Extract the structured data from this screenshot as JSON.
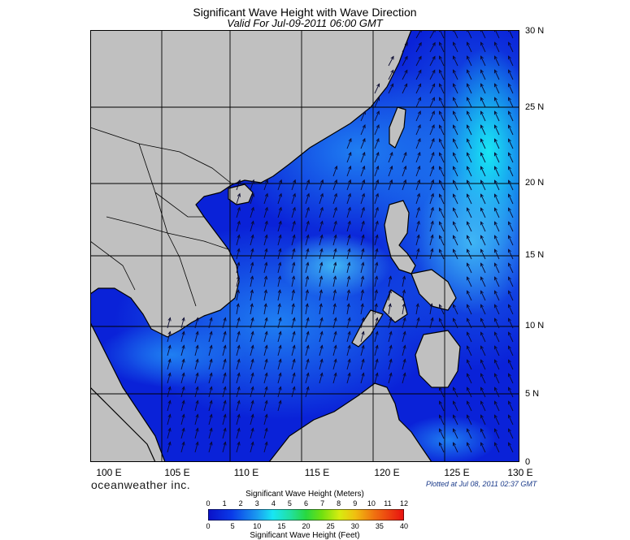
{
  "title": "Significant Wave Height with Wave Direction",
  "subtitle": "Valid For Jul-09-2011 06:00 GMT",
  "lat_labels": [
    "30 N",
    "25 N",
    "20 N",
    "15 N",
    "10 N",
    "5 N",
    "0"
  ],
  "lon_labels": [
    "100 E",
    "105 E",
    "110 E",
    "115 E",
    "120 E",
    "125 E",
    "130 E"
  ],
  "brand": "oceanweather inc.",
  "plotted": "Plotted at Jul 08, 2011 02:37 GMT",
  "colorbar": {
    "meters_title": "Significant Wave Height (Meters)",
    "feet_title": "Significant Wave Height (Feet)",
    "meters_ticks": [
      "0",
      "1",
      "2",
      "3",
      "4",
      "5",
      "6",
      "7",
      "8",
      "9",
      "10",
      "11",
      "12"
    ],
    "feet_ticks": [
      "0",
      "5",
      "10",
      "15",
      "20",
      "25",
      "30",
      "35",
      "40"
    ]
  },
  "colors": {
    "land": "#c0c0c0",
    "sea_low": "#0a22d8",
    "sea_mid": "#1a66ee",
    "sea_high": "#18e6f4"
  }
}
